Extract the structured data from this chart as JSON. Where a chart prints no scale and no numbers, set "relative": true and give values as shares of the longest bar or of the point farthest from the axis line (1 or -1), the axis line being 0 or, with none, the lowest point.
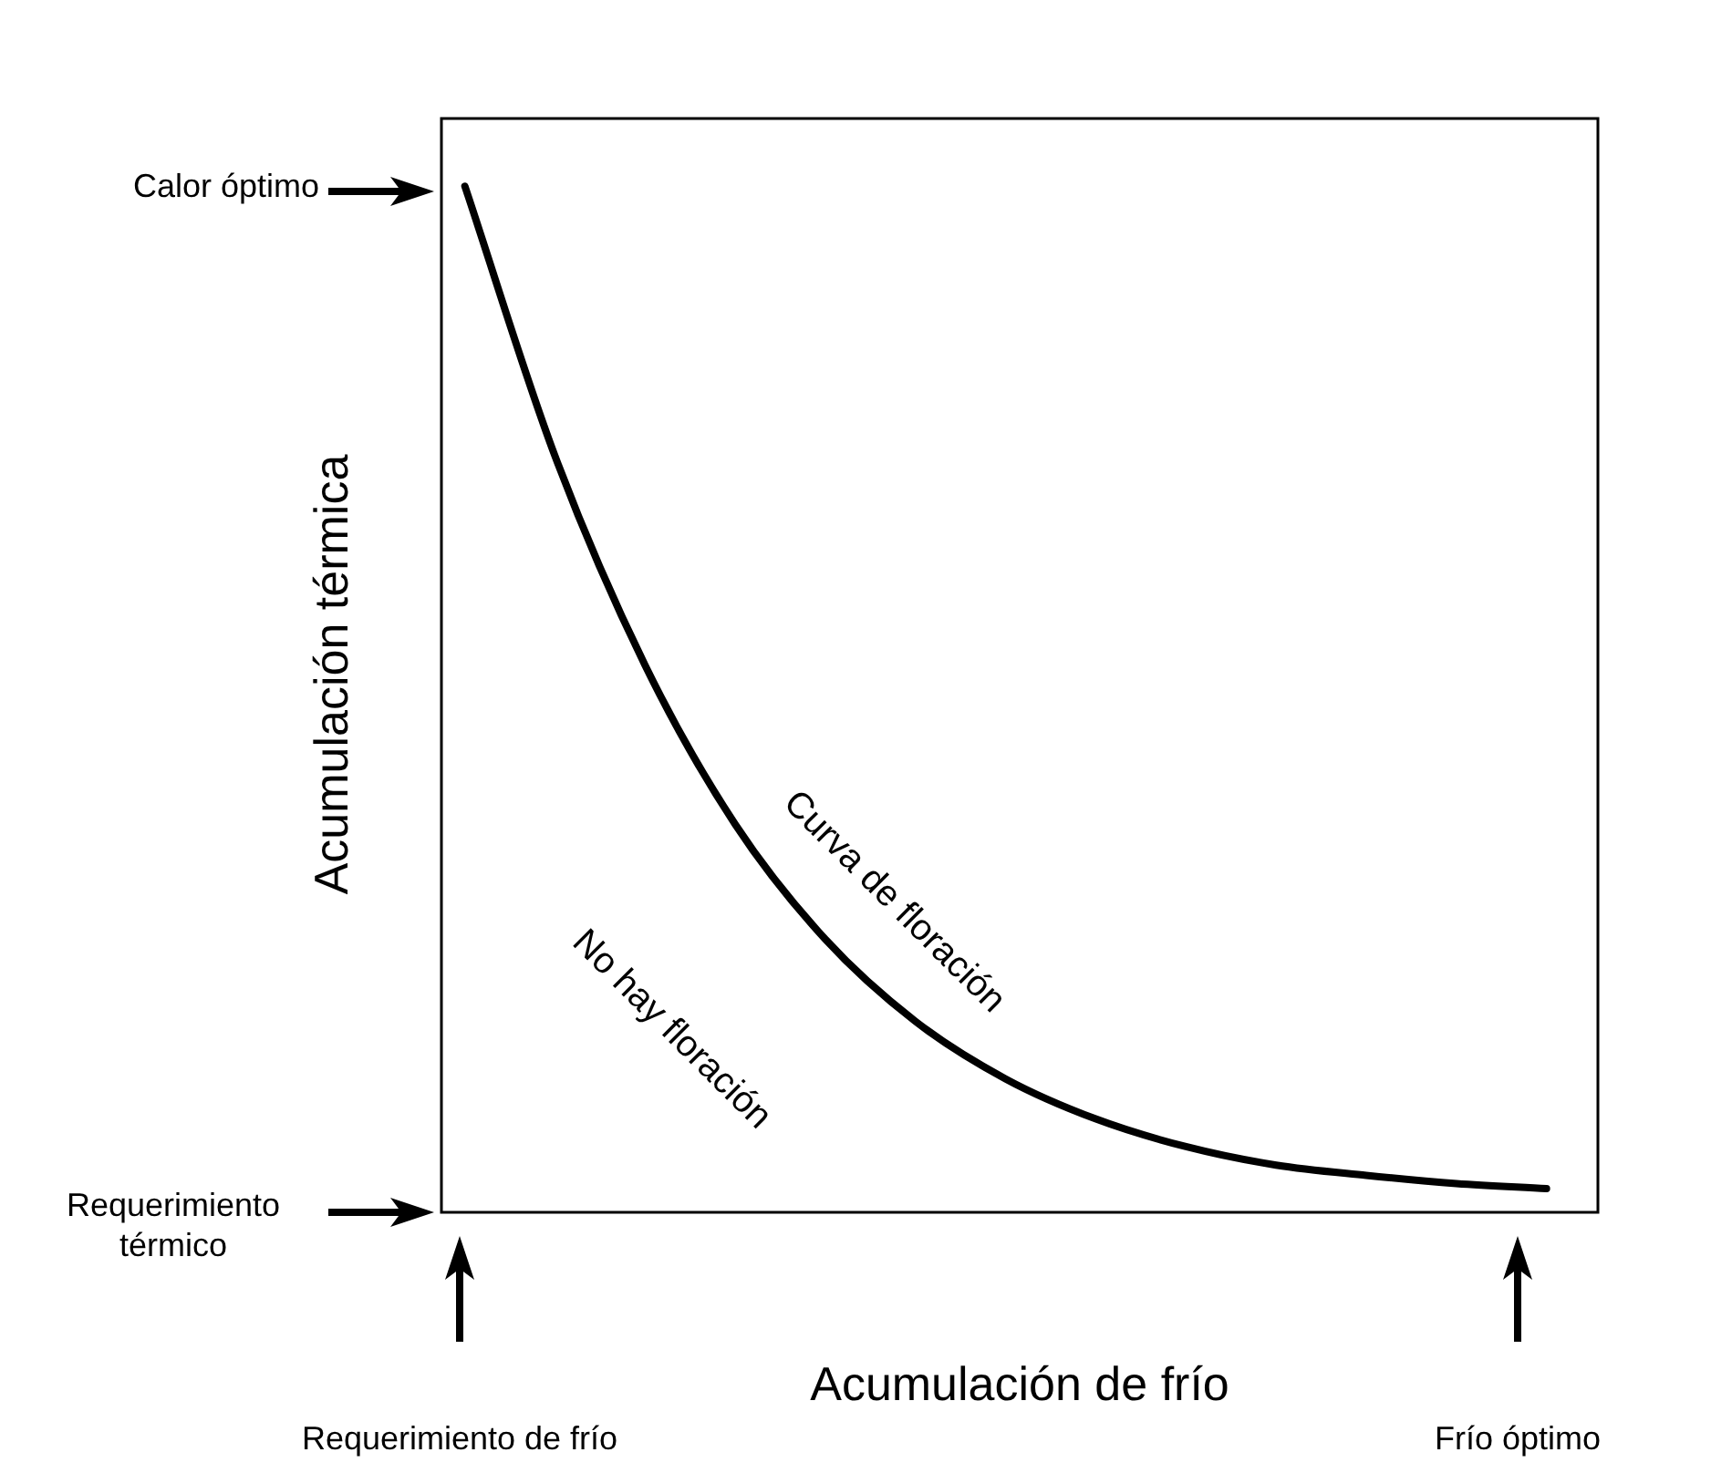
{
  "chart_data": {
    "type": "line",
    "relative": true,
    "xlabel": "Acumulación de frío",
    "ylabel": "Acumulación térmica",
    "categories": [
      null,
      null,
      null,
      null,
      null,
      null,
      null,
      null,
      null,
      null,
      null,
      null,
      null
    ],
    "values": [
      1,
      0.737,
      0.533,
      0.378,
      0.266,
      0.186,
      0.13,
      0.091,
      0.064,
      0.046,
      0.036,
      0.028,
      0.023
    ],
    "color": "#000000",
    "marker": "none",
    "annotations": [
      "Calor óptimo",
      "Requerimiento térmico",
      "Requerimiento de frío",
      "Frío óptimo",
      "Curva de floración",
      "No hay floración"
    ]
  }
}
